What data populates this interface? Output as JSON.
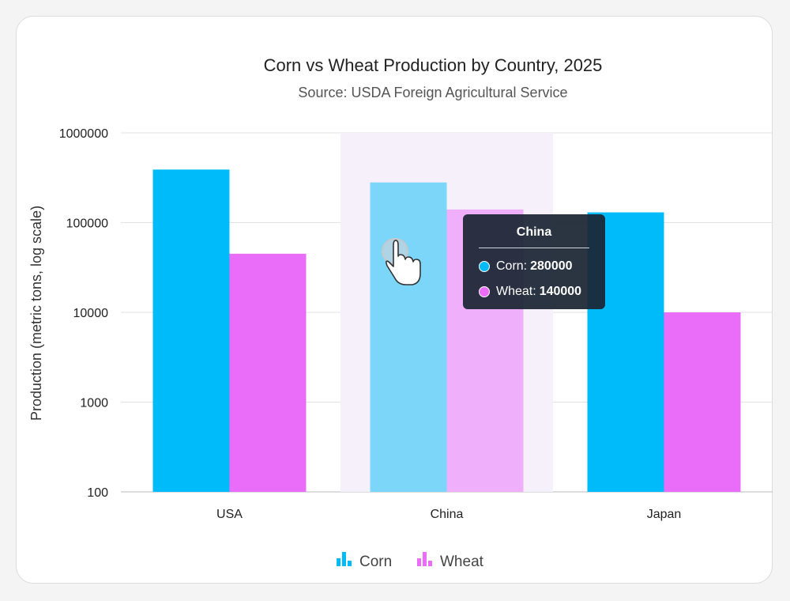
{
  "chart_data": {
    "type": "bar",
    "title": "Corn vs Wheat Production by Country, 2025",
    "subtitle": "Source: USDA Foreign Agricultural Service",
    "ylabel": "Production (metric tons, log scale)",
    "xlabel": "",
    "yscale": "log",
    "ylim": [
      100,
      1000000
    ],
    "yticks": [
      "100",
      "1000",
      "10000",
      "100000",
      "1000000"
    ],
    "categories": [
      "USA",
      "China",
      "Japan"
    ],
    "series": [
      {
        "name": "Corn",
        "color": "#00bbfa",
        "values": [
          390000,
          280000,
          130000
        ]
      },
      {
        "name": "Wheat",
        "color": "#ea6df9",
        "values": [
          45000,
          140000,
          10000
        ]
      }
    ],
    "highlighted_category": "China",
    "grid": true,
    "legend": "bottom-center"
  },
  "tooltip": {
    "title": "China",
    "rows": [
      {
        "label": "Corn:",
        "value": "280000",
        "color": "#00bbfa"
      },
      {
        "label": "Wheat:",
        "value": "140000",
        "color": "#ea6df9"
      }
    ]
  },
  "cursor": "hand-pointer-icon"
}
